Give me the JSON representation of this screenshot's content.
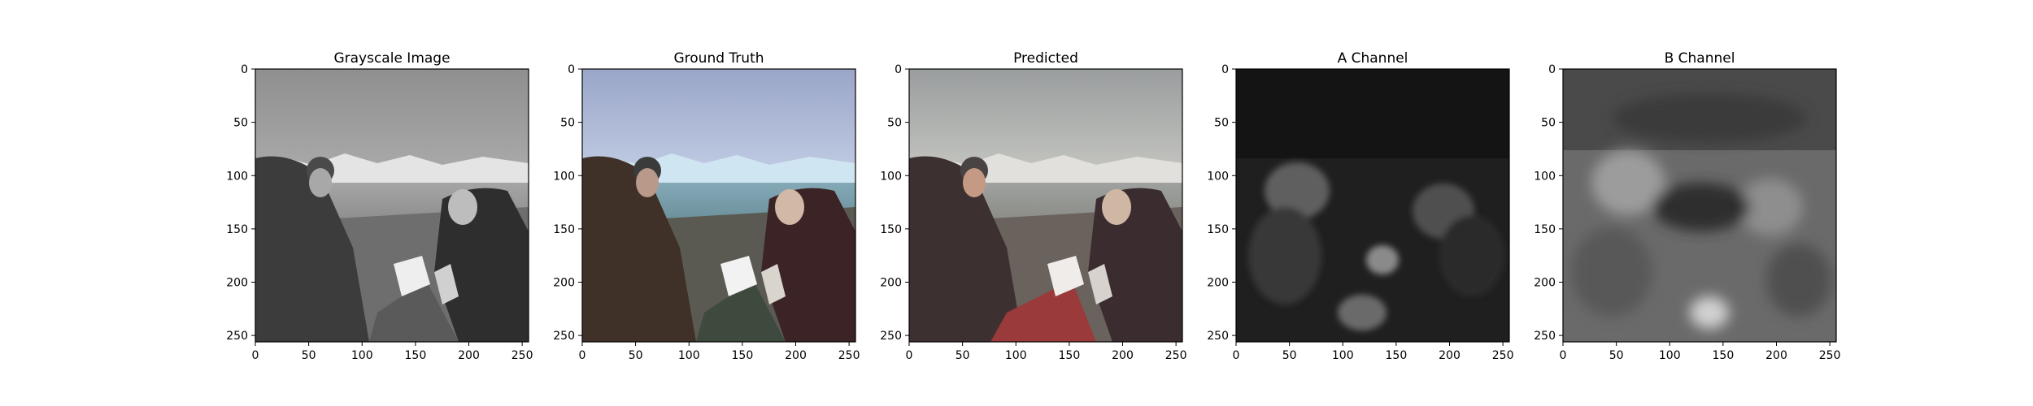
{
  "figure": {
    "panels": [
      {
        "title": "Grayscale Image",
        "kind": "gray"
      },
      {
        "title": "Ground Truth",
        "kind": "truth"
      },
      {
        "title": "Predicted",
        "kind": "pred"
      },
      {
        "title": "A Channel",
        "kind": "achan"
      },
      {
        "title": "B Channel",
        "kind": "bchan"
      }
    ],
    "axes": {
      "xlim": [
        0,
        256
      ],
      "ylim": [
        256,
        0
      ],
      "xticks": [
        0,
        50,
        100,
        150,
        200,
        250
      ],
      "yticks": [
        0,
        50,
        100,
        150,
        200,
        250
      ]
    }
  }
}
